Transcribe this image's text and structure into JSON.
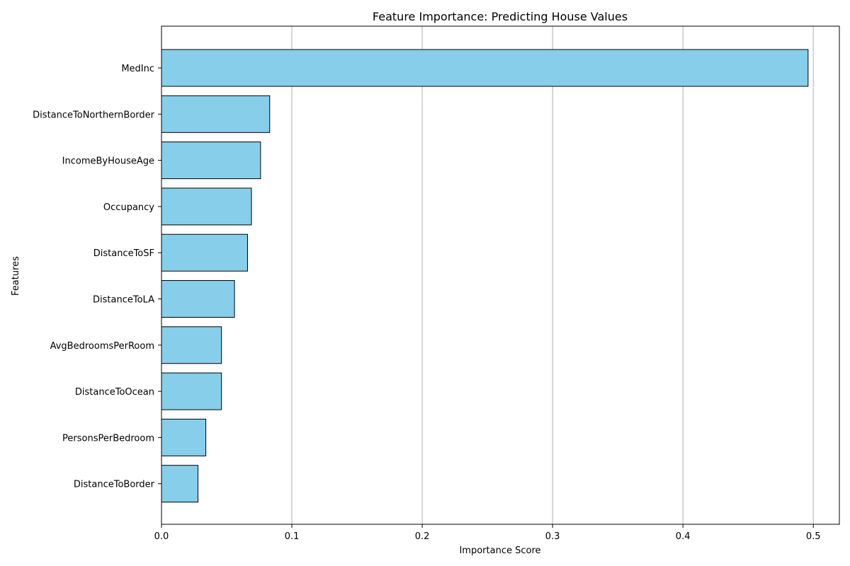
{
  "chart_data": {
    "type": "bar",
    "orientation": "horizontal",
    "title": "Feature Importance: Predicting House Values",
    "xlabel": "Importance Score",
    "ylabel": "Features",
    "categories": [
      "MedInc",
      "DistanceToNorthernBorder",
      "IncomeByHouseAge",
      "Occupancy",
      "DistanceToSF",
      "DistanceToLA",
      "AvgBedroomsPerRoom",
      "DistanceToOcean",
      "PersonsPerBedroom",
      "DistanceToBorder"
    ],
    "values": [
      0.496,
      0.083,
      0.076,
      0.069,
      0.066,
      0.056,
      0.046,
      0.046,
      0.034,
      0.028
    ],
    "xlim": [
      0,
      0.52
    ],
    "xticks": [
      "0.0",
      "0.1",
      "0.2",
      "0.3",
      "0.4",
      "0.5"
    ],
    "grid": "x-major",
    "bar_color": "#87ceeb",
    "bar_edge_color": "#000000",
    "grid_color": "#b0b0b0"
  }
}
